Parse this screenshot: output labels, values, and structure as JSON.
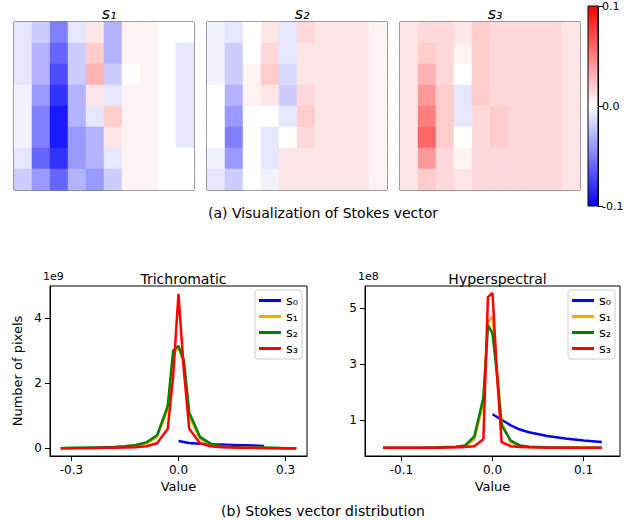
{
  "chart_data": [
    {
      "type": "heatmap",
      "title": "s₁",
      "cells": [
        [
          -0.01,
          -0.02,
          -0.05,
          -0.01,
          0.01,
          -0.03,
          0.005,
          0.005,
          0.0,
          0.0
        ],
        [
          -0.01,
          -0.03,
          -0.06,
          -0.02,
          0.02,
          -0.03,
          0.005,
          0.005,
          0.0,
          -0.01
        ],
        [
          -0.01,
          -0.03,
          -0.07,
          -0.02,
          0.03,
          -0.02,
          0.0,
          0.005,
          0.0,
          -0.01
        ],
        [
          -0.005,
          -0.04,
          -0.08,
          -0.03,
          0.01,
          -0.01,
          0.005,
          0.005,
          0.0,
          -0.01
        ],
        [
          -0.005,
          -0.05,
          -0.09,
          -0.03,
          -0.01,
          0.02,
          0.005,
          0.005,
          0.0,
          -0.01
        ],
        [
          -0.005,
          -0.05,
          -0.09,
          -0.04,
          -0.03,
          0.01,
          0.005,
          0.005,
          0.0,
          -0.01
        ],
        [
          -0.01,
          -0.06,
          -0.08,
          -0.04,
          -0.03,
          -0.01,
          0.005,
          0.005,
          0.0,
          0.0
        ],
        [
          -0.02,
          -0.04,
          -0.06,
          -0.03,
          -0.04,
          -0.02,
          0.005,
          0.005,
          0.0,
          0.0
        ]
      ]
    },
    {
      "type": "heatmap",
      "title": "s₂",
      "cells": [
        [
          -0.005,
          -0.01,
          0.0,
          0.01,
          -0.01,
          0.015,
          0.01,
          0.01,
          0.01,
          0.005
        ],
        [
          -0.005,
          -0.02,
          0.0,
          0.015,
          -0.01,
          0.01,
          0.01,
          0.01,
          0.01,
          0.005
        ],
        [
          -0.005,
          -0.02,
          0.005,
          0.02,
          -0.015,
          0.01,
          0.01,
          0.01,
          0.01,
          0.005
        ],
        [
          0.0,
          -0.03,
          0.005,
          0.01,
          -0.02,
          0.015,
          0.01,
          0.01,
          0.01,
          0.005
        ],
        [
          0.0,
          -0.04,
          0.0,
          0.0,
          -0.01,
          0.02,
          0.01,
          0.01,
          0.01,
          0.005
        ],
        [
          0.0,
          -0.05,
          0.0,
          -0.01,
          0.0,
          0.015,
          0.01,
          0.01,
          0.01,
          0.005
        ],
        [
          -0.005,
          -0.04,
          0.0,
          -0.01,
          0.01,
          0.01,
          0.01,
          0.01,
          0.01,
          0.005
        ],
        [
          -0.01,
          -0.02,
          0.0,
          -0.005,
          0.01,
          0.01,
          0.01,
          0.01,
          0.01,
          0.005
        ]
      ]
    },
    {
      "type": "heatmap",
      "title": "s₃",
      "cells": [
        [
          0.01,
          0.015,
          0.015,
          0.01,
          0.02,
          0.015,
          0.015,
          0.015,
          0.015,
          0.01
        ],
        [
          0.01,
          0.02,
          0.015,
          0.005,
          0.02,
          0.015,
          0.015,
          0.015,
          0.015,
          0.01
        ],
        [
          0.01,
          0.03,
          0.015,
          0.0,
          0.02,
          0.015,
          0.015,
          0.015,
          0.015,
          0.01
        ],
        [
          0.01,
          0.04,
          0.02,
          -0.01,
          0.02,
          0.015,
          0.015,
          0.015,
          0.015,
          0.01
        ],
        [
          0.01,
          0.05,
          0.02,
          -0.01,
          0.015,
          0.02,
          0.015,
          0.015,
          0.015,
          0.01
        ],
        [
          0.01,
          0.06,
          0.02,
          0.0,
          0.015,
          0.02,
          0.015,
          0.015,
          0.015,
          0.01
        ],
        [
          0.01,
          0.04,
          0.015,
          0.005,
          0.015,
          0.015,
          0.015,
          0.015,
          0.015,
          0.01
        ],
        [
          0.01,
          0.02,
          0.015,
          0.01,
          0.015,
          0.015,
          0.015,
          0.015,
          0.015,
          0.01
        ]
      ],
      "colorbar": {
        "range": [
          -0.1,
          0.1
        ],
        "ticks": [
          -0.1,
          {
            "value": 0,
            "label": "0.0"
          },
          0.1
        ]
      }
    },
    {
      "type": "line",
      "title": "Trichromatic",
      "xlabel": "Value",
      "ylabel": "Number of pixels",
      "annotations": [
        "1e9"
      ],
      "x": [
        -0.33,
        -0.3,
        -0.27,
        -0.24,
        -0.21,
        -0.18,
        -0.15,
        -0.12,
        -0.09,
        -0.06,
        -0.03,
        -0.015,
        0,
        0.015,
        0.03,
        0.06,
        0.09,
        0.12,
        0.15,
        0.18,
        0.21,
        0.24,
        0.27,
        0.3,
        0.33
      ],
      "series": [
        {
          "name": "s₀",
          "color": "#0000ff",
          "values": [
            null,
            null,
            null,
            null,
            null,
            null,
            null,
            null,
            null,
            null,
            null,
            null,
            0.22,
            0.19,
            0.16,
            0.14,
            0.12,
            0.11,
            0.1,
            0.09,
            0.08,
            0.07,
            null,
            null,
            null
          ]
        },
        {
          "name": "s₁",
          "color": "#ffa500",
          "values": [
            0,
            0,
            0.01,
            0.01,
            0.02,
            0.03,
            0.05,
            0.08,
            0.15,
            0.35,
            1.2,
            2.9,
            3.1,
            2.6,
            1.0,
            0.3,
            0.12,
            0.06,
            0.03,
            0.02,
            0.01,
            0.01,
            0,
            0,
            0
          ]
        },
        {
          "name": "s₂",
          "color": "#008000",
          "values": [
            0,
            0.01,
            0.01,
            0.02,
            0.03,
            0.04,
            0.06,
            0.1,
            0.18,
            0.4,
            1.3,
            3.0,
            3.15,
            2.7,
            1.1,
            0.35,
            0.14,
            0.07,
            0.04,
            0.02,
            0.01,
            0.01,
            0.01,
            0,
            0
          ]
        },
        {
          "name": "s₃",
          "color": "#ff0000",
          "values": [
            0,
            0,
            0,
            0,
            0.01,
            0.01,
            0.02,
            0.03,
            0.06,
            0.15,
            0.6,
            2.2,
            4.75,
            2.4,
            0.6,
            0.15,
            0.06,
            0.03,
            0.02,
            0.01,
            0.01,
            0,
            0,
            0,
            0
          ]
        }
      ],
      "xlim": [
        -0.36,
        0.36
      ],
      "xticks": [
        -0.3,
        {
          "value": 0,
          "label": "0.0"
        },
        0.3
      ],
      "ylim": [
        -0.24,
        4.99
      ],
      "yticks": [
        0,
        2,
        4
      ],
      "legend": "upper right",
      "grid": false
    },
    {
      "type": "line",
      "title": "Hyperspectral",
      "xlabel": "Value",
      "annotations": [
        "1e8"
      ],
      "x": [
        -0.12,
        -0.1,
        -0.08,
        -0.06,
        -0.04,
        -0.03,
        -0.02,
        -0.01,
        -0.005,
        0,
        0.005,
        0.01,
        0.02,
        0.03,
        0.04,
        0.06,
        0.08,
        0.1,
        0.12
      ],
      "series": [
        {
          "name": "s₀",
          "color": "#0000ff",
          "values": [
            null,
            null,
            null,
            null,
            null,
            null,
            null,
            null,
            null,
            1.2,
            1.1,
            1.0,
            0.8,
            0.65,
            0.55,
            0.42,
            0.33,
            0.26,
            0.2
          ]
        },
        {
          "name": "s₁",
          "color": "#ffa500",
          "values": [
            0,
            0,
            0,
            0.01,
            0.02,
            0.05,
            0.3,
            1.6,
            4.5,
            4.7,
            2.8,
            0.9,
            0.2,
            0.06,
            0.02,
            0.01,
            0,
            0,
            0
          ]
        },
        {
          "name": "s₂",
          "color": "#008000",
          "values": [
            0,
            0,
            0,
            0.01,
            0.03,
            0.08,
            0.4,
            1.8,
            4.4,
            4.1,
            2.6,
            0.8,
            0.25,
            0.08,
            0.03,
            0.01,
            0,
            0,
            0
          ]
        },
        {
          "name": "s₃",
          "color": "#ff0000",
          "values": [
            0,
            0,
            0,
            0,
            0.01,
            0.02,
            0.05,
            0.3,
            5.4,
            5.55,
            2.6,
            0.2,
            0.05,
            0.02,
            0.01,
            0,
            0,
            0,
            0
          ]
        }
      ],
      "xlim": [
        -0.14,
        0.14
      ],
      "xticks": [
        -0.1,
        {
          "value": 0,
          "label": "0.0"
        },
        0.1
      ],
      "ylim": [
        -0.3,
        5.8
      ],
      "yticks": [
        1,
        3,
        5
      ],
      "legend": "upper right",
      "grid": false
    }
  ],
  "captions": [
    "(a) Visualization of Stokes vector",
    "(b) Stokes vector distribution"
  ]
}
